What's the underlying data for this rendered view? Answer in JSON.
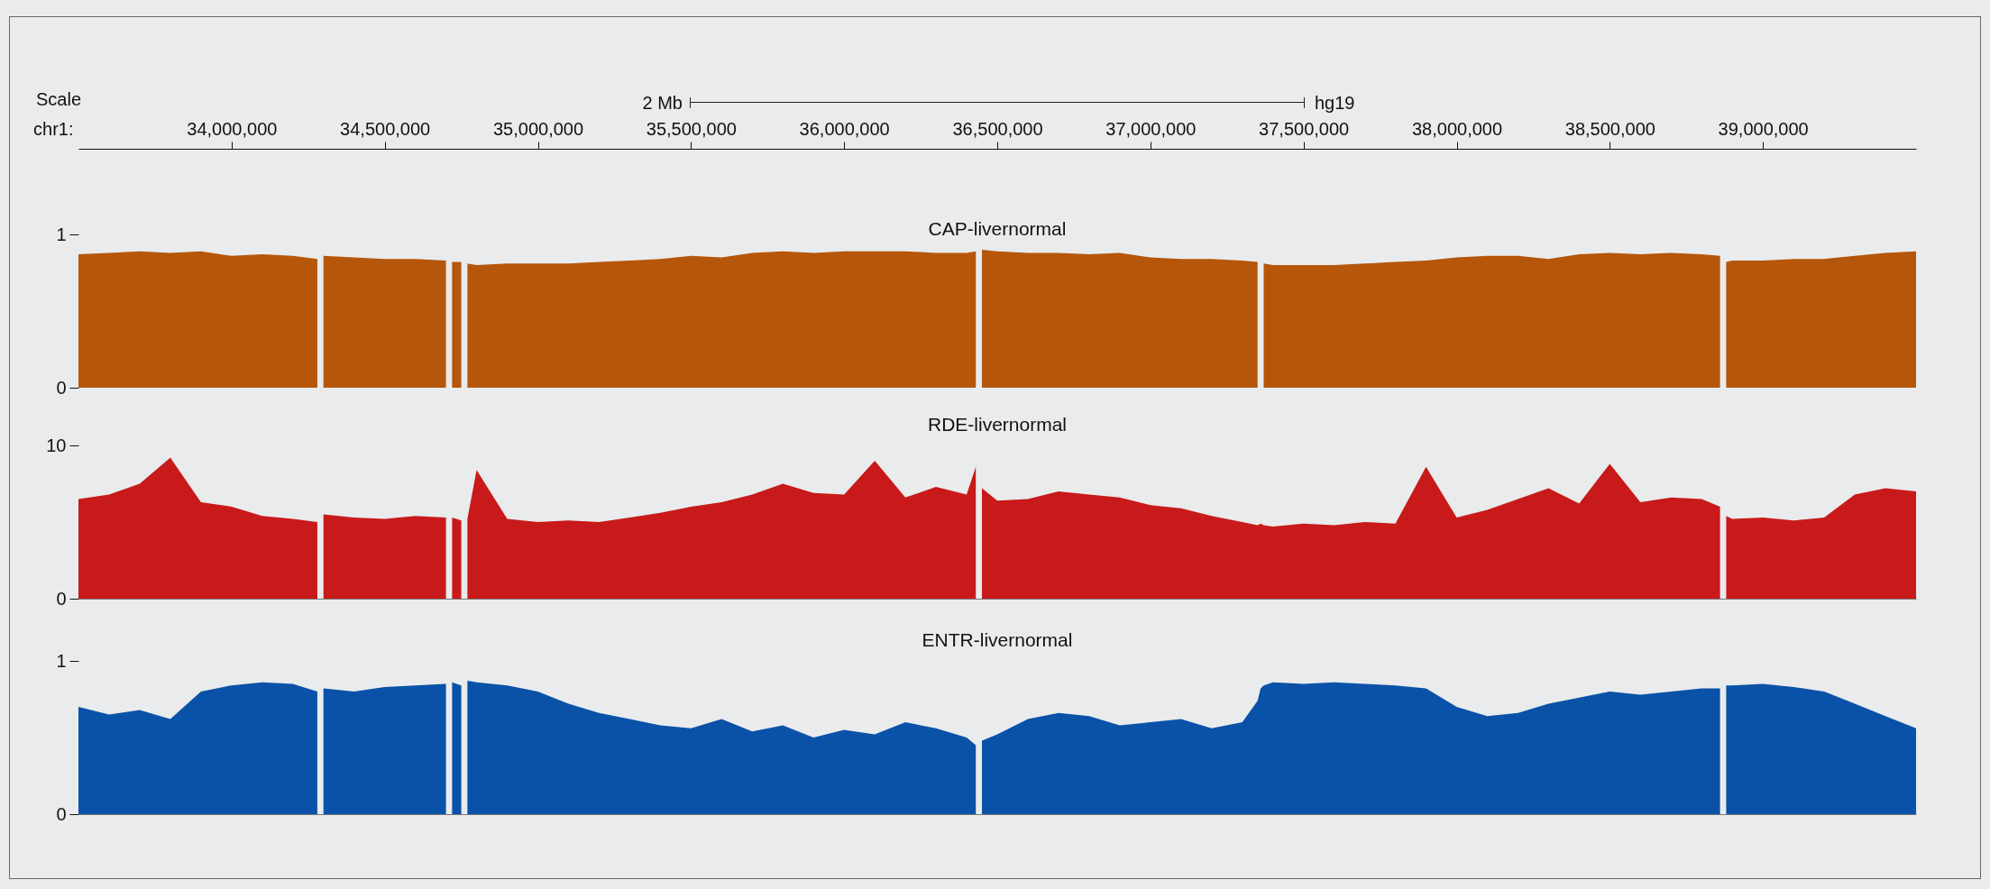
{
  "chart_data": [
    {
      "type": "area",
      "title": "CAP-livernormal",
      "xlabel": "chr1:",
      "annotations": [
        "Scale",
        "2 Mb",
        "hg19"
      ],
      "x": [
        33500000,
        33600000,
        33700000,
        33800000,
        33900000,
        34000000,
        34100000,
        34200000,
        34280000,
        34290000,
        34300000,
        34400000,
        34500000,
        34600000,
        34700000,
        34710000,
        34720000,
        34750000,
        34760000,
        34770000,
        34800000,
        34900000,
        35000000,
        35100000,
        35200000,
        35300000,
        35400000,
        35500000,
        35600000,
        35700000,
        35800000,
        35900000,
        36000000,
        36100000,
        36200000,
        36300000,
        36400000,
        36430000,
        36440000,
        36450000,
        36500000,
        36600000,
        36700000,
        36800000,
        36900000,
        37000000,
        37100000,
        37200000,
        37300000,
        37350000,
        37360000,
        37370000,
        37400000,
        37500000,
        37600000,
        37700000,
        37800000,
        37900000,
        38000000,
        38100000,
        38200000,
        38300000,
        38400000,
        38500000,
        38600000,
        38700000,
        38800000,
        38860000,
        38870000,
        38880000,
        38900000,
        39000000,
        39100000,
        39200000,
        39300000,
        39400000,
        39500000
      ],
      "xlim": [
        33500000,
        39500000
      ],
      "xticks": [
        {
          "value": 34000000,
          "label": "34,000,000"
        },
        {
          "value": 34500000,
          "label": "34,500,000"
        },
        {
          "value": 35000000,
          "label": "35,000,000"
        },
        {
          "value": 35500000,
          "label": "35,500,000"
        },
        {
          "value": 36000000,
          "label": "36,000,000"
        },
        {
          "value": 36500000,
          "label": "36,500,000"
        },
        {
          "value": 37000000,
          "label": "37,000,000"
        },
        {
          "value": 37500000,
          "label": "37,500,000"
        },
        {
          "value": 38000000,
          "label": "38,000,000"
        },
        {
          "value": 38500000,
          "label": "38,500,000"
        },
        {
          "value": 39000000,
          "label": "39,000,000"
        }
      ],
      "ylim": [
        0,
        1
      ],
      "yticks": [
        0,
        1
      ],
      "series": [
        {
          "color": "#b5560a",
          "values": [
            0.87,
            0.88,
            0.89,
            0.88,
            0.89,
            0.86,
            0.87,
            0.86,
            0.84,
            null,
            0.86,
            0.85,
            0.84,
            0.84,
            0.83,
            null,
            0.82,
            0.82,
            null,
            0.81,
            0.8,
            0.81,
            0.81,
            0.81,
            0.82,
            0.83,
            0.84,
            0.86,
            0.85,
            0.88,
            0.89,
            0.88,
            0.89,
            0.89,
            0.89,
            0.88,
            0.88,
            0.89,
            null,
            0.9,
            0.89,
            0.88,
            0.88,
            0.87,
            0.88,
            0.85,
            0.84,
            0.84,
            0.83,
            0.82,
            null,
            0.81,
            0.8,
            0.8,
            0.8,
            0.81,
            0.82,
            0.83,
            0.85,
            0.86,
            0.86,
            0.84,
            0.87,
            0.88,
            0.87,
            0.88,
            0.87,
            0.86,
            null,
            0.82,
            0.83,
            0.83,
            0.84,
            0.84,
            0.86,
            0.88,
            0.89
          ]
        }
      ]
    },
    {
      "type": "area",
      "title": "RDE-livernormal",
      "tick_labels": "y",
      "x": [
        33500000,
        33600000,
        33700000,
        33800000,
        33900000,
        34000000,
        34100000,
        34200000,
        34280000,
        34290000,
        34300000,
        34400000,
        34500000,
        34600000,
        34700000,
        34710000,
        34720000,
        34750000,
        34760000,
        34770000,
        34800000,
        34900000,
        35000000,
        35100000,
        35200000,
        35300000,
        35400000,
        35500000,
        35600000,
        35700000,
        35800000,
        35900000,
        36000000,
        36100000,
        36200000,
        36300000,
        36400000,
        36430000,
        36440000,
        36450000,
        36500000,
        36600000,
        36700000,
        36800000,
        36900000,
        37000000,
        37100000,
        37200000,
        37300000,
        37350000,
        37360000,
        37370000,
        37400000,
        37500000,
        37600000,
        37700000,
        37800000,
        37900000,
        38000000,
        38100000,
        38200000,
        38300000,
        38400000,
        38500000,
        38600000,
        38700000,
        38800000,
        38860000,
        38870000,
        38880000,
        38900000,
        39000000,
        39100000,
        39200000,
        39300000,
        39400000,
        39500000
      ],
      "xlim": [
        33500000,
        39500000
      ],
      "ylim": [
        0,
        10
      ],
      "yticks": [
        0,
        10
      ],
      "series": [
        {
          "color": "#c81a1a",
          "values": [
            6.5,
            6.8,
            7.5,
            9.2,
            6.3,
            6.0,
            5.4,
            5.2,
            5.0,
            null,
            5.5,
            5.3,
            5.2,
            5.4,
            5.3,
            null,
            5.3,
            5.1,
            null,
            5.2,
            8.4,
            5.2,
            5.0,
            5.1,
            5.0,
            5.3,
            5.6,
            6.0,
            6.3,
            6.8,
            7.5,
            6.9,
            6.8,
            9.0,
            6.6,
            7.3,
            6.8,
            8.6,
            null,
            7.2,
            6.4,
            6.5,
            7.0,
            6.8,
            6.6,
            6.1,
            5.9,
            5.4,
            5.0,
            4.8,
            4.9,
            4.8,
            4.7,
            4.9,
            4.8,
            5.0,
            4.9,
            8.6,
            5.3,
            5.8,
            6.5,
            7.2,
            6.2,
            8.8,
            6.3,
            6.6,
            6.5,
            6.0,
            null,
            5.4,
            5.2,
            5.3,
            5.1,
            5.3,
            6.8,
            7.2,
            7.0
          ]
        }
      ]
    },
    {
      "type": "area",
      "title": "ENTR-livernormal",
      "tick_labels": "y",
      "x": [
        33500000,
        33600000,
        33700000,
        33800000,
        33900000,
        34000000,
        34100000,
        34200000,
        34280000,
        34290000,
        34300000,
        34400000,
        34500000,
        34600000,
        34700000,
        34710000,
        34720000,
        34750000,
        34760000,
        34770000,
        34800000,
        34900000,
        35000000,
        35100000,
        35200000,
        35300000,
        35400000,
        35500000,
        35600000,
        35700000,
        35800000,
        35900000,
        36000000,
        36100000,
        36200000,
        36300000,
        36400000,
        36430000,
        36440000,
        36450000,
        36500000,
        36600000,
        36700000,
        36800000,
        36900000,
        37000000,
        37100000,
        37200000,
        37300000,
        37350000,
        37360000,
        37370000,
        37400000,
        37500000,
        37600000,
        37700000,
        37800000,
        37900000,
        38000000,
        38100000,
        38200000,
        38300000,
        38400000,
        38500000,
        38600000,
        38700000,
        38800000,
        38860000,
        38870000,
        38880000,
        38900000,
        39000000,
        39100000,
        39200000,
        39300000,
        39400000,
        39500000
      ],
      "xlim": [
        33500000,
        39500000
      ],
      "ylim": [
        0,
        1
      ],
      "yticks": [
        0,
        1
      ],
      "series": [
        {
          "color": "#0a52a8",
          "values": [
            0.7,
            0.65,
            0.68,
            0.62,
            0.8,
            0.84,
            0.86,
            0.85,
            0.8,
            null,
            0.82,
            0.8,
            0.83,
            0.84,
            0.85,
            null,
            0.86,
            0.84,
            null,
            0.87,
            0.86,
            0.84,
            0.8,
            0.72,
            0.66,
            0.62,
            0.58,
            0.56,
            0.62,
            0.54,
            0.58,
            0.5,
            0.55,
            0.52,
            0.6,
            0.56,
            0.5,
            0.45,
            null,
            0.48,
            0.52,
            0.62,
            0.66,
            0.64,
            0.58,
            0.6,
            0.62,
            0.56,
            0.6,
            0.74,
            0.82,
            0.84,
            0.86,
            0.85,
            0.86,
            0.85,
            0.84,
            0.82,
            0.7,
            0.64,
            0.66,
            0.72,
            0.76,
            0.8,
            0.78,
            0.8,
            0.82,
            0.82,
            null,
            0.84,
            0.84,
            0.85,
            0.83,
            0.8,
            0.72,
            0.64,
            0.56
          ]
        }
      ]
    }
  ]
}
